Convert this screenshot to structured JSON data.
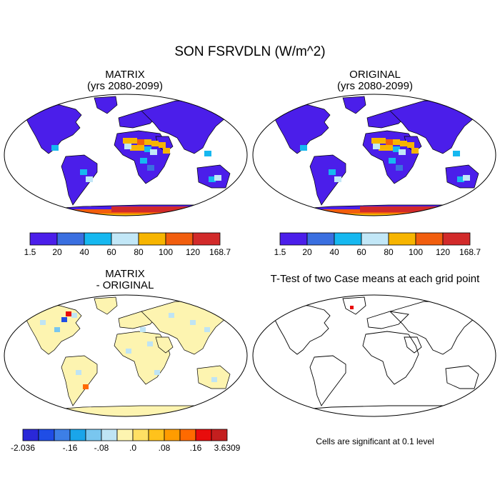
{
  "main_title": "SON FSRVDLN (W/m^2)",
  "panels": {
    "matrix": {
      "title": "MATRIX",
      "subtitle": "(yrs 2080-2099)"
    },
    "original": {
      "title": "ORIGINAL",
      "subtitle": "(yrs 2080-2099)"
    },
    "diff": {
      "title": "MATRIX",
      "subtitle": "- ORIGINAL"
    },
    "ttest": {
      "title": "T-Test of two Case means at each grid point"
    }
  },
  "note": "Cells are significant at 0.1 level",
  "chart_data": [
    {
      "type": "heatmap",
      "panel": "matrix",
      "title": "MATRIX (yrs 2080-2099)",
      "colorbar": {
        "labels": [
          "1.5",
          "20",
          "40",
          "60",
          "80",
          "100",
          "120",
          "168.7"
        ],
        "colors": [
          "#4b1eea",
          "#3a6fe0",
          "#16b8f0",
          "#c2e7f7",
          "#f7b500",
          "#f25e0e",
          "#d22a2a"
        ]
      },
      "features": [
        "land: mostly 1.5-20",
        "Sahara/Arabia: 80-120",
        "Antarctica: 80-168.7"
      ]
    },
    {
      "type": "heatmap",
      "panel": "original",
      "title": "ORIGINAL (yrs 2080-2099)",
      "colorbar": {
        "labels": [
          "1.5",
          "20",
          "40",
          "60",
          "80",
          "100",
          "120",
          "168.7"
        ],
        "colors": [
          "#4b1eea",
          "#3a6fe0",
          "#16b8f0",
          "#c2e7f7",
          "#f7b500",
          "#f25e0e",
          "#d22a2a"
        ]
      }
    },
    {
      "type": "heatmap",
      "panel": "diff",
      "title": "MATRIX - ORIGINAL",
      "colorbar": {
        "labels": [
          "-2.036",
          "",
          "",
          "-.16",
          "",
          "-.08",
          "",
          ".0",
          "",
          ".08",
          "",
          ".16",
          "",
          "3.6309"
        ],
        "colors": [
          "#2a28d8",
          "#1f4de6",
          "#3d7fe6",
          "#1aa5ea",
          "#79c6ef",
          "#bfe4f4",
          "#fdf4b0",
          "#ffe064",
          "#ffc21c",
          "#ff9c00",
          "#ff6a00",
          "#e80c0c",
          "#c41f1f"
        ]
      }
    },
    {
      "type": "heatmap",
      "panel": "ttest",
      "title": "T-Test of two Case means at each grid point",
      "significant_cells": 2
    }
  ]
}
